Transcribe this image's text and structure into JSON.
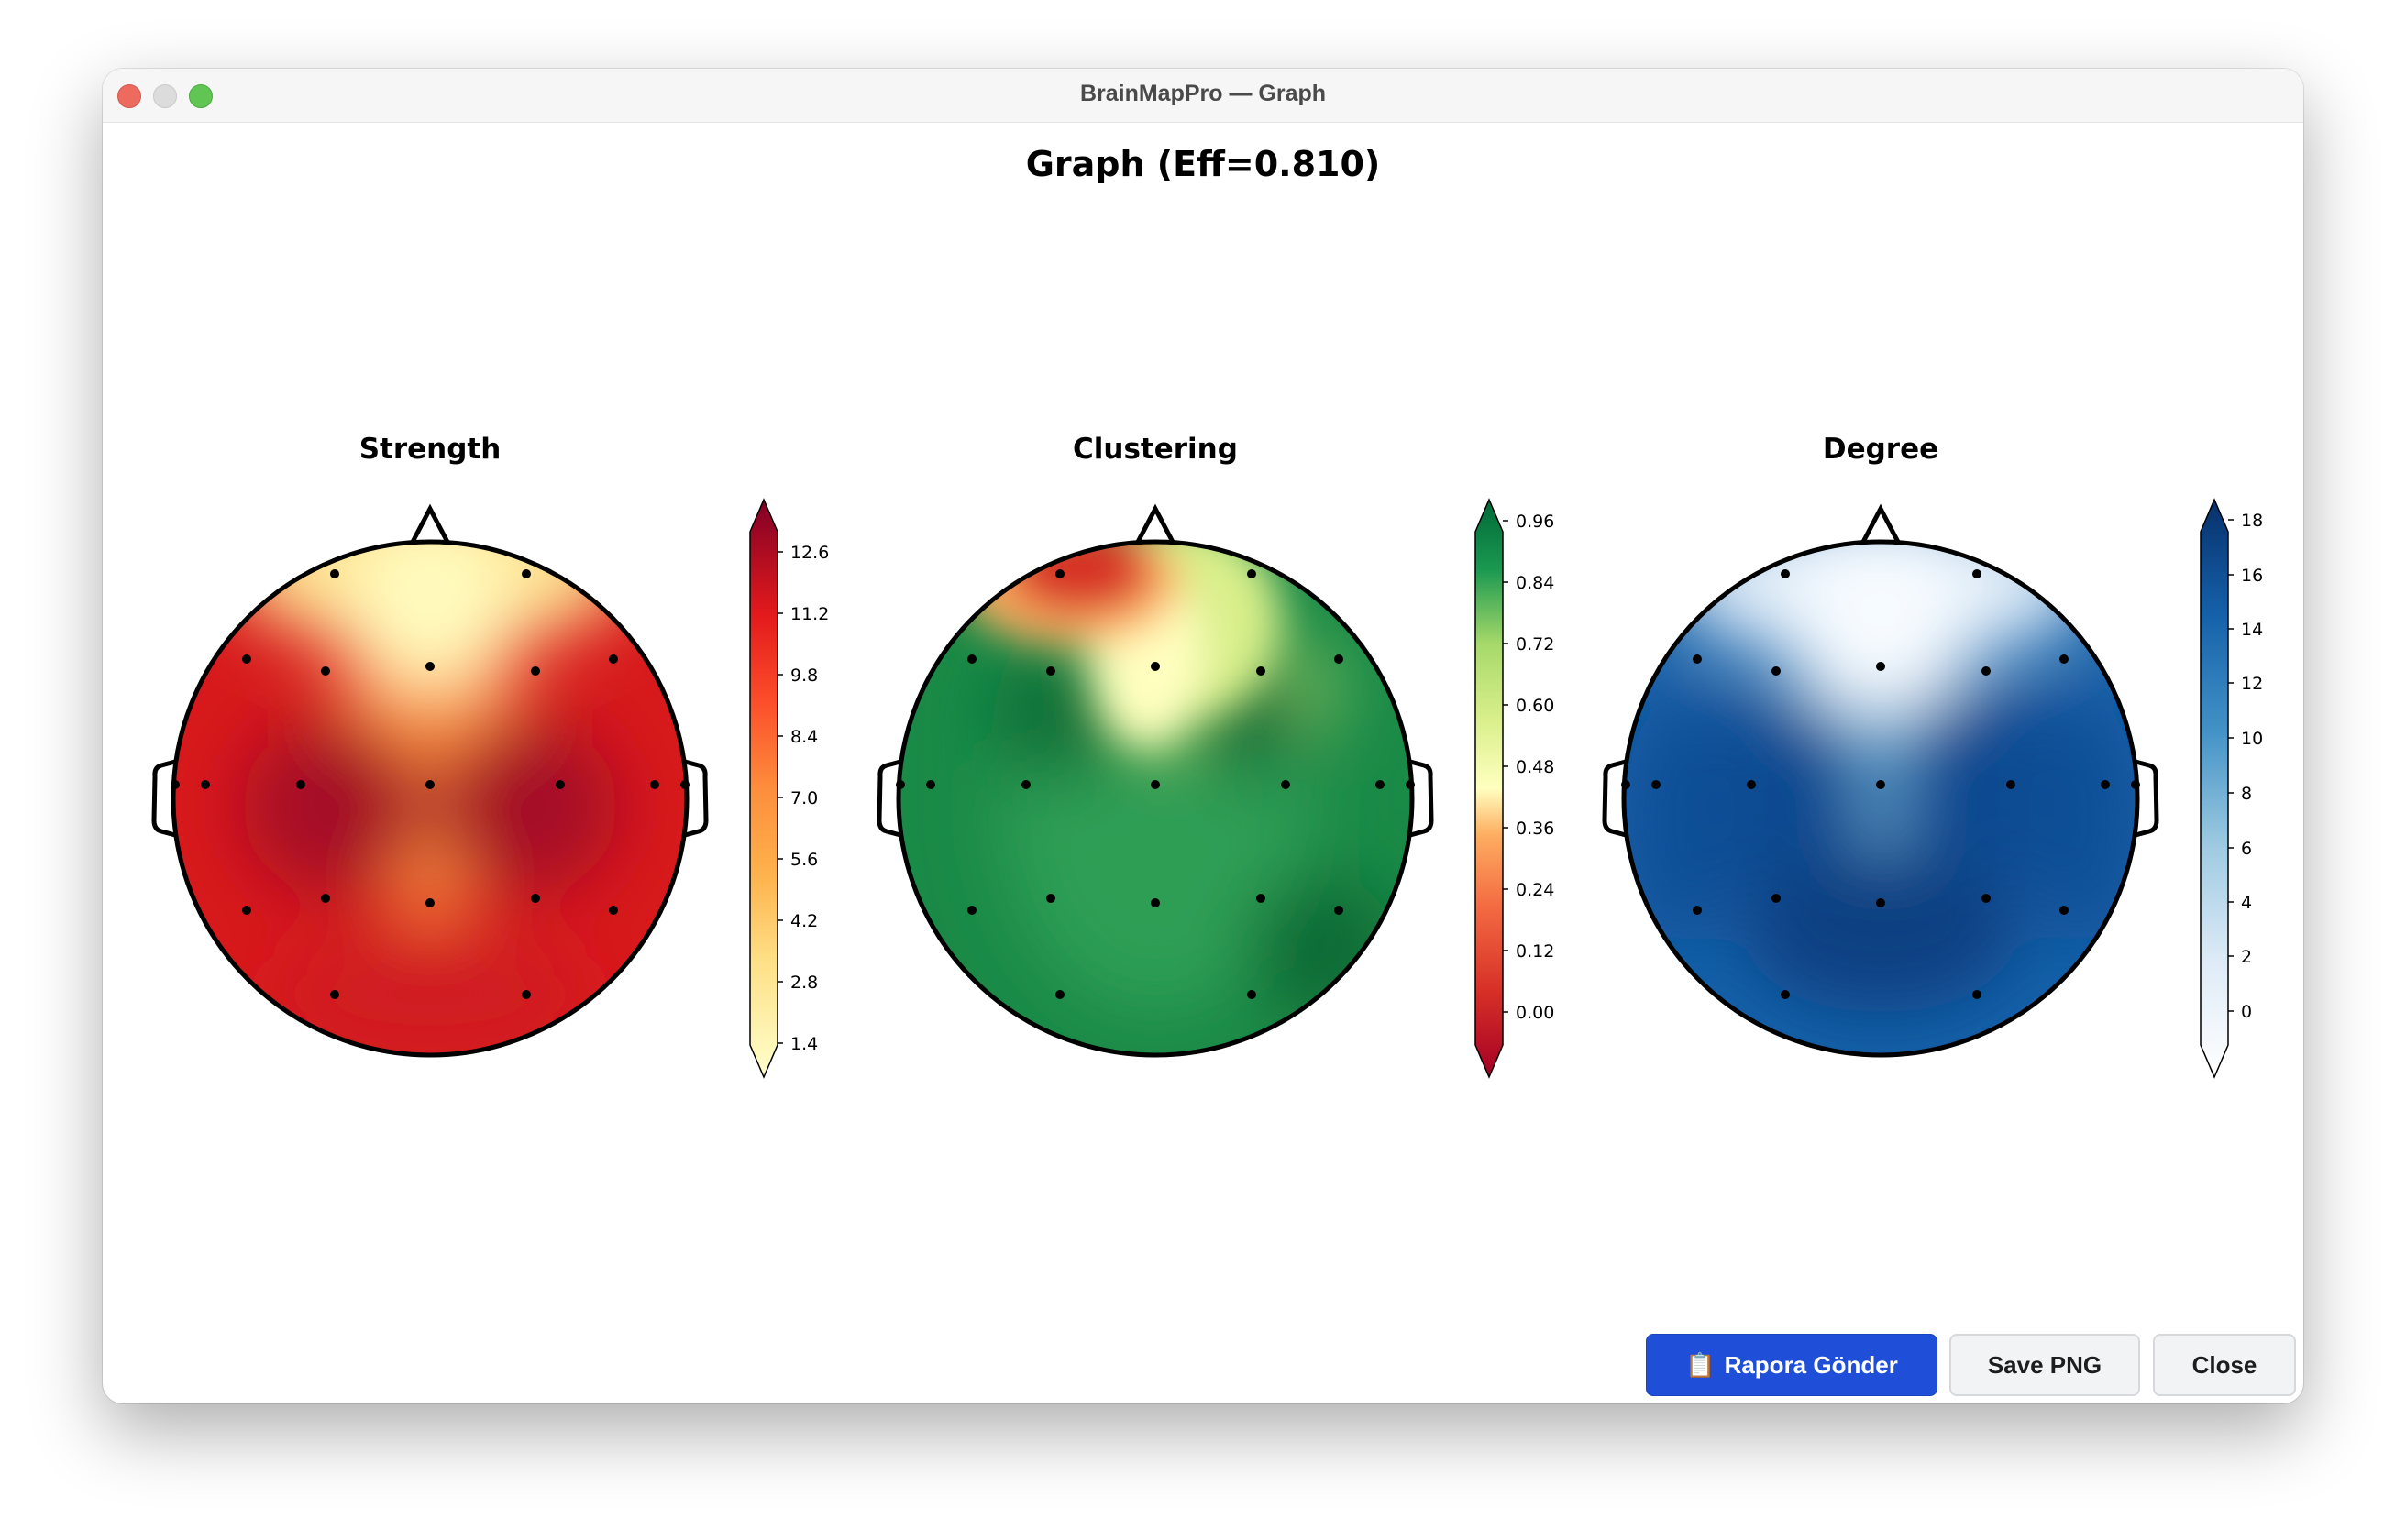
{
  "window": {
    "title": "BrainMapPro — Graph"
  },
  "figure": {
    "title": "Graph (Eff=0.810)"
  },
  "buttons": {
    "report_icon": "clipboard-icon",
    "report_label": "Rapora Gönder",
    "save_label": "Save PNG",
    "close_label": "Close"
  },
  "chart_data": [
    {
      "type": "heatmap",
      "title": "Strength",
      "colormap": "YlOrRd",
      "colorbar_ticks": [
        "1.4",
        "2.8",
        "4.2",
        "5.6",
        "7.0",
        "8.4",
        "9.8",
        "11.2",
        "12.6"
      ],
      "colorbar_range": [
        1.4,
        12.6
      ]
    },
    {
      "type": "heatmap",
      "title": "Clustering",
      "colormap": "RdYlGn",
      "colorbar_ticks": [
        "0.00",
        "0.12",
        "0.24",
        "0.36",
        "0.48",
        "0.60",
        "0.72",
        "0.84",
        "0.96"
      ],
      "colorbar_range": [
        0.0,
        0.96
      ]
    },
    {
      "type": "heatmap",
      "title": "Degree",
      "colormap": "Blues",
      "colorbar_ticks": [
        "0",
        "2",
        "4",
        "6",
        "8",
        "10",
        "12",
        "14",
        "16",
        "18"
      ],
      "colorbar_range": [
        0,
        18
      ]
    }
  ]
}
